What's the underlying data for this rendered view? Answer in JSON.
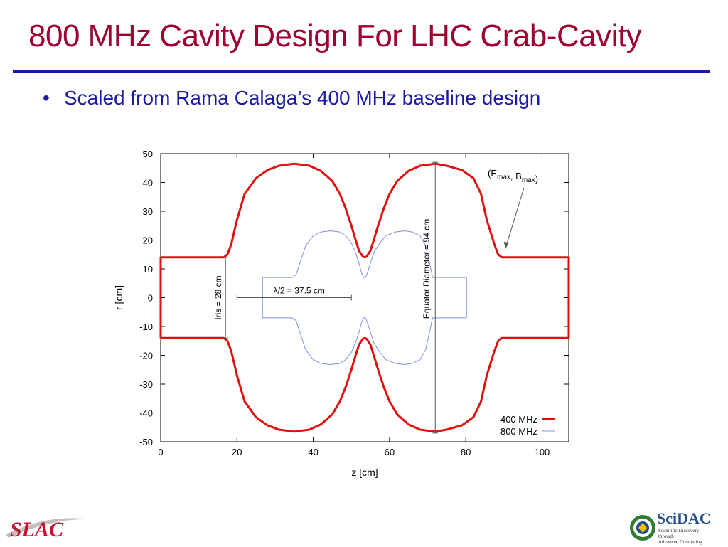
{
  "slide": {
    "title": "800 MHz Cavity Design For LHC Crab-Cavity",
    "bullet": "Scaled from Rama Calaga’s 400 MHz baseline design",
    "bullet_marker": "•",
    "title_color": "#a00030",
    "rule_color": "#1a1aa6",
    "text_color": "#1a1aa6"
  },
  "logos": {
    "left_text": "SLAC",
    "right_text": "SciDAC",
    "right_sub": [
      "Scientific Discovery",
      "through",
      "Advanced Computing"
    ]
  },
  "chart_data": {
    "type": "line",
    "xlabel": "z [cm]",
    "ylabel": "r [cm]",
    "xlim": [
      0,
      107
    ],
    "ylim": [
      -50,
      50
    ],
    "x_ticks": [
      0,
      20,
      40,
      60,
      80,
      100
    ],
    "y_ticks": [
      50,
      40,
      30,
      20,
      10,
      0,
      -10,
      -20,
      -30,
      -40,
      -50
    ],
    "grid": false,
    "legend_position": "bottom-right",
    "series": [
      {
        "name": "400 MHz",
        "color": "#e01010",
        "x": [
          0,
          16.5,
          17.5,
          18.5,
          20,
          22,
          25,
          28,
          31,
          35,
          39,
          42,
          45,
          47,
          48.5,
          50,
          51,
          52,
          53,
          53.5,
          54,
          55,
          56,
          57,
          58.5,
          60,
          62,
          65,
          68,
          72,
          75,
          79,
          82,
          84,
          85.5,
          87.5,
          88.5,
          89.5,
          90.5,
          107
        ],
        "y": [
          14,
          14,
          15,
          18.5,
          27,
          36,
          41.5,
          44.3,
          45.8,
          46.5,
          45.8,
          44,
          40.5,
          36,
          31,
          25,
          20.5,
          16.3,
          14.3,
          14,
          14.3,
          16.3,
          20.5,
          25,
          31,
          36,
          40.5,
          44,
          45.8,
          46.5,
          45.8,
          44.3,
          41.5,
          36,
          27,
          18.5,
          15,
          14,
          14,
          14
        ]
      },
      {
        "name": "800 MHz",
        "color": "#8090e8",
        "x": [
          26.7,
          34.5,
          35.5,
          36.5,
          38,
          40,
          42,
          44.5,
          47,
          48.5,
          50,
          51,
          52,
          52.7,
          53.2,
          53.7,
          54.2,
          55,
          56,
          57.5,
          59,
          61.5,
          64,
          66,
          68,
          69.5,
          70.5,
          71.3,
          80.2
        ],
        "y": [
          7,
          7,
          8,
          12,
          18,
          21.5,
          22.8,
          23.2,
          22.8,
          21.5,
          19,
          16,
          12,
          8.5,
          7,
          7,
          8.5,
          12,
          16,
          19,
          21.5,
          22.8,
          23.2,
          22.8,
          21.5,
          18,
          12,
          7,
          7
        ]
      }
    ],
    "annotations": [
      {
        "text": "λ/2 = 37.5 cm",
        "span": [
          20,
          50
        ],
        "at_r": 0
      },
      {
        "text": "Iris = 28 cm",
        "span": [
          -14,
          14
        ],
        "at_z": 17
      },
      {
        "text": "Equator Diameter = 94 cm",
        "span": [
          -47,
          47
        ],
        "at_z": 72
      },
      {
        "text": "(E",
        "sub1": "max",
        "mid": ", B",
        "sub2": "max",
        "end": ")",
        "points_to": [
          90,
          17
        ]
      }
    ]
  }
}
